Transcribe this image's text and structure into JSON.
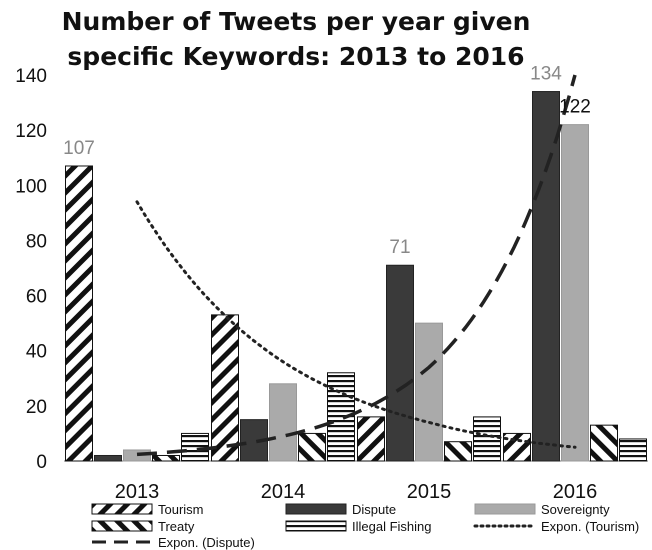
{
  "chart_data": {
    "type": "bar",
    "title_line1": "Number of Tweets per year given",
    "title_line2": "specific Keywords: 2013 to 2016",
    "categories": [
      "2013",
      "2014",
      "2015",
      "2016"
    ],
    "ylim": [
      0,
      140
    ],
    "yticks": [
      "0",
      "20",
      "40",
      "60",
      "80",
      "100",
      "120",
      "140"
    ],
    "grid": false,
    "legend_position": "bottom",
    "series": [
      {
        "name": "Tourism",
        "values": [
          107,
          53,
          16,
          10
        ],
        "pattern": "diag-left",
        "color": "#111111"
      },
      {
        "name": "Dispute",
        "values": [
          2,
          15,
          71,
          134
        ],
        "pattern": "solid-dark",
        "color": "#3a3a3a"
      },
      {
        "name": "Sovereignty",
        "values": [
          4,
          28,
          50,
          122
        ],
        "pattern": "solid-light",
        "color": "#aaaaaa"
      },
      {
        "name": "Treaty",
        "values": [
          2,
          10,
          7,
          13
        ],
        "pattern": "diag-right",
        "color": "#111111"
      },
      {
        "name": "Illegal Fishing",
        "values": [
          10,
          32,
          16,
          8
        ],
        "pattern": "horizontal",
        "color": "#111111"
      }
    ],
    "trendlines": [
      {
        "name": "Expon. (Tourism)",
        "style": "dotted",
        "values": [
          94,
          36,
          14,
          5
        ]
      },
      {
        "name": "Expon. (Dispute)",
        "style": "dashed",
        "values": [
          2.4,
          9,
          34,
          140
        ]
      }
    ],
    "data_labels": [
      {
        "text": "107",
        "category": "2013",
        "value": 107
      },
      {
        "text": "71",
        "category": "2015",
        "value": 71
      },
      {
        "text": "134",
        "category": "2016",
        "value": 134
      },
      {
        "text": "122",
        "category": "2016",
        "value": 122
      }
    ],
    "legend": {
      "row1": [
        "Tourism",
        "Dispute",
        "Sovereignty"
      ],
      "row2": [
        "Treaty",
        "Illegal Fishing",
        "Expon. (Tourism)"
      ],
      "row3": [
        "Expon. (Dispute)"
      ]
    }
  }
}
